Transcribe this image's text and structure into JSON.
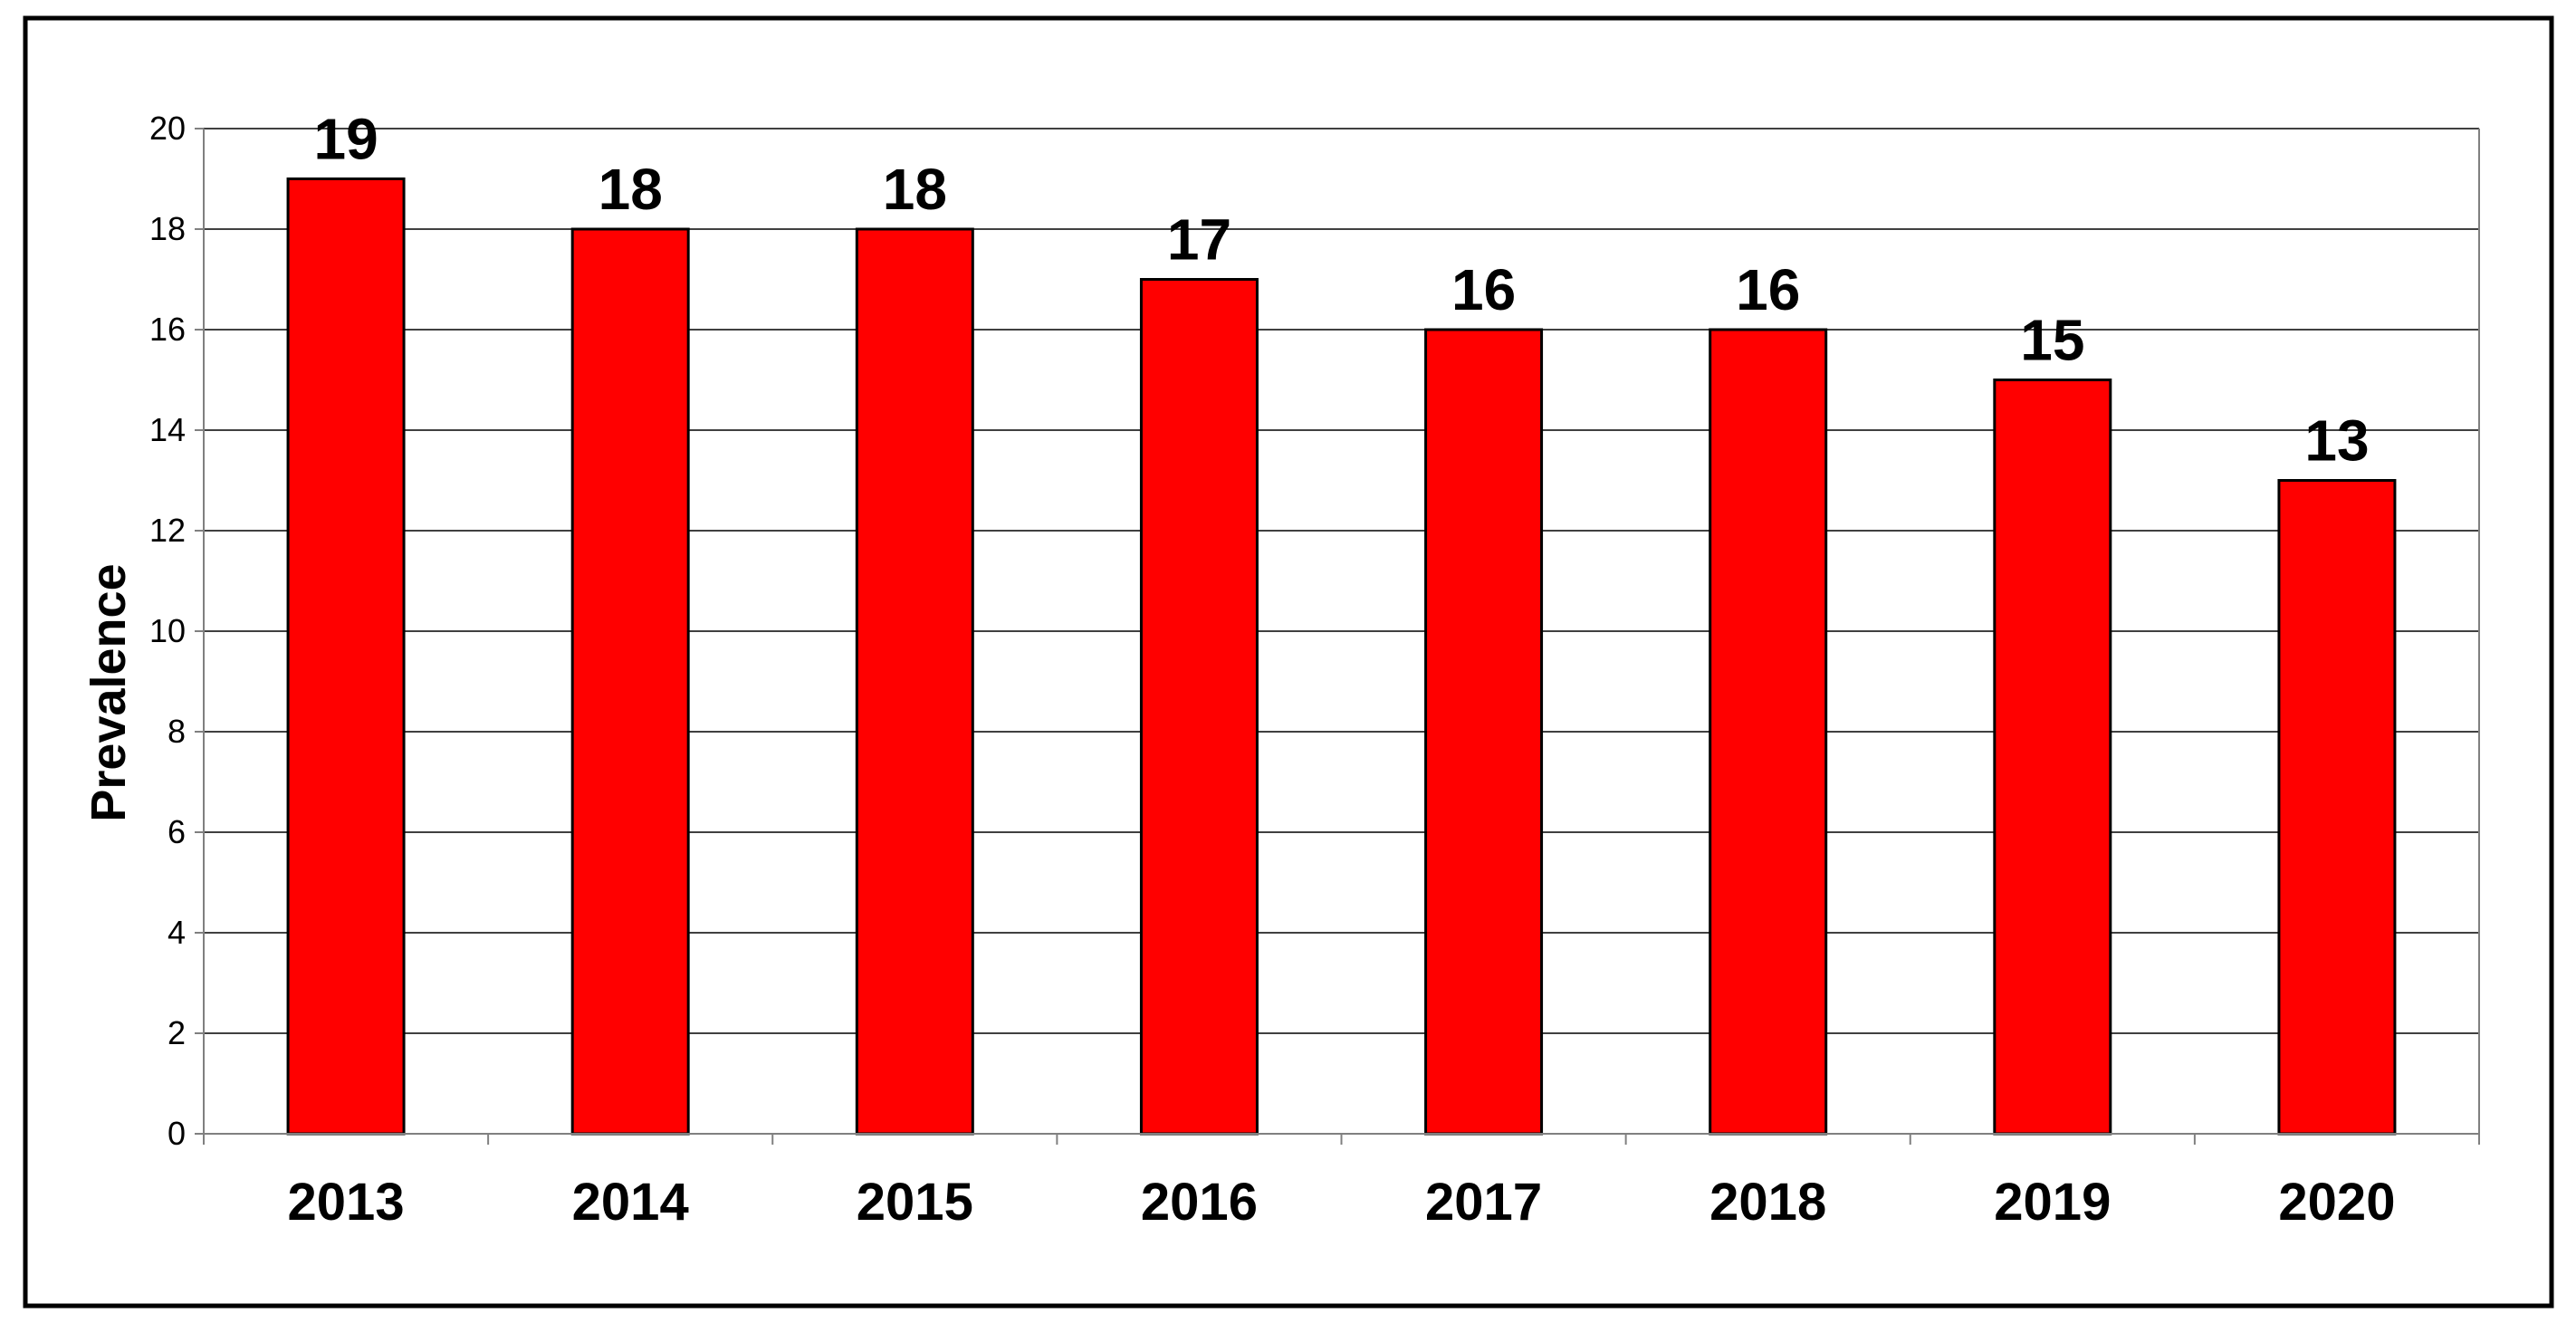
{
  "chart_data": {
    "type": "bar",
    "title": "",
    "xlabel": "",
    "ylabel": "Prevalence",
    "categories": [
      "2013",
      "2014",
      "2015",
      "2016",
      "2017",
      "2018",
      "2019",
      "2020"
    ],
    "values": [
      19,
      18,
      18,
      17,
      16,
      16,
      15,
      13
    ],
    "data_labels": [
      "19",
      "18",
      "18",
      "17",
      "16",
      "16",
      "15",
      "13"
    ],
    "ylim": [
      0,
      20
    ],
    "yticks": [
      0,
      2,
      4,
      6,
      8,
      10,
      12,
      14,
      16,
      18,
      20
    ],
    "ytick_labels": [
      "0",
      "2",
      "4",
      "6",
      "8",
      "10",
      "12",
      "14",
      "16",
      "18",
      "20"
    ],
    "grid": true,
    "legend": "none",
    "colors": {
      "bar_fill": "#FF0000",
      "bar_stroke": "#000000",
      "gridline": "#000000",
      "frame": "#000000"
    }
  }
}
